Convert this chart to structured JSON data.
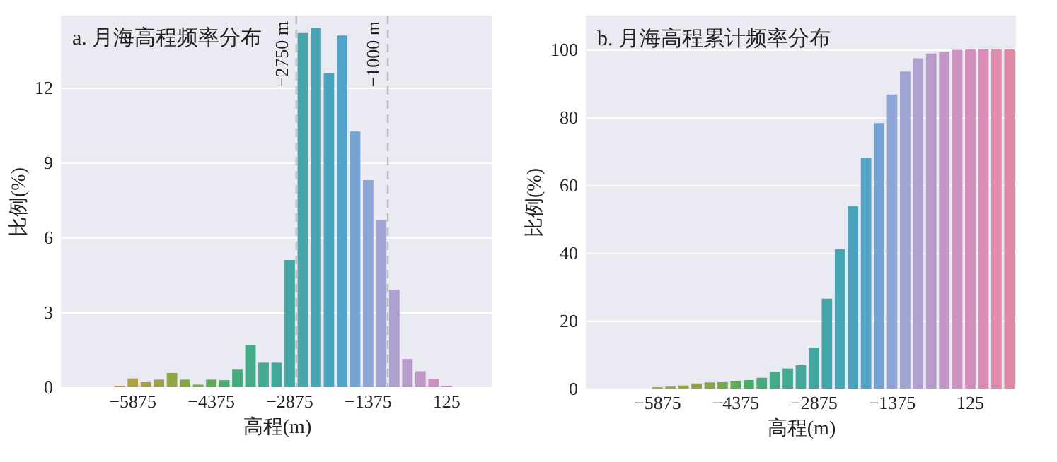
{
  "chart_data": [
    {
      "type": "bar",
      "title": "a. 月海高程频率分布",
      "xlabel": "高程(m)",
      "ylabel": "比例(%)",
      "categories": [
        null,
        null,
        null,
        null,
        null,
        "−5875",
        null,
        null,
        null,
        null,
        null,
        "−4375",
        null,
        null,
        null,
        null,
        null,
        "−2875",
        null,
        null,
        null,
        null,
        null,
        "−1375",
        null,
        null,
        null,
        null,
        null,
        "125",
        null,
        null,
        null
      ],
      "values": [
        0,
        0,
        0,
        0,
        0.05,
        0.35,
        0.2,
        0.3,
        0.57,
        0.3,
        0.1,
        0.3,
        0.28,
        0.7,
        1.7,
        0.98,
        0.98,
        5.1,
        14.2,
        14.4,
        12.6,
        14.1,
        10.25,
        8.3,
        6.7,
        3.9,
        1.13,
        0.64,
        0.34,
        0.05,
        0,
        0,
        0
      ],
      "colors": [
        "#d69a5c",
        "#cc9d50",
        "#c49e4c",
        "#bb9f4a",
        "#b3a047",
        "#aea045",
        "#a6a145",
        "#9ca245",
        "#91a446",
        "#85a647",
        "#75a84a",
        "#5dab53",
        "#4aac69",
        "#46ab7b",
        "#45aa88",
        "#44a993",
        "#43a89c",
        "#43a7a4",
        "#45a6ac",
        "#47a5b4",
        "#4ba4bd",
        "#55a2c9",
        "#74a4d4",
        "#8ea6d6",
        "#a0a4d4",
        "#aea0cf",
        "#b99ccb",
        "#c297c6",
        "#cb92c2",
        "#d38ebe",
        "#da8cb6",
        "#df8bae",
        "#e28aa5"
      ],
      "ylim": [
        0,
        14.9
      ],
      "yticks": [
        0,
        3,
        6,
        9,
        12
      ],
      "grid": "y",
      "annotations": [
        "−2750 m",
        "−1000 m"
      ]
    },
    {
      "type": "bar",
      "title": "b. 月海高程累计频率分布",
      "xlabel": "高程(m)",
      "ylabel": "比例(%)",
      "categories": [
        null,
        null,
        null,
        null,
        null,
        "−5875",
        null,
        null,
        null,
        null,
        null,
        "−4375",
        null,
        null,
        null,
        null,
        null,
        "−2875",
        null,
        null,
        null,
        null,
        null,
        "−1375",
        null,
        null,
        null,
        null,
        null,
        "125",
        null,
        null,
        null
      ],
      "values": [
        0,
        0,
        0,
        0,
        0,
        0.4,
        0.6,
        0.9,
        1.5,
        1.8,
        1.9,
        2.2,
        2.5,
        3.2,
        4.9,
        5.9,
        6.9,
        12.0,
        26.5,
        41.1,
        53.8,
        67.9,
        78.3,
        86.7,
        93.5,
        97.4,
        98.8,
        99.4,
        99.9,
        100,
        100,
        100,
        100
      ],
      "colors": [
        "#d69a5c",
        "#cc9d50",
        "#c49e4c",
        "#bb9f4a",
        "#b3a047",
        "#aea045",
        "#a6a145",
        "#9ca245",
        "#91a446",
        "#85a647",
        "#75a84a",
        "#5dab53",
        "#4aac69",
        "#46ab7b",
        "#45aa88",
        "#44a993",
        "#43a89c",
        "#43a7a4",
        "#45a6ac",
        "#47a5b4",
        "#4ba4bd",
        "#55a2c9",
        "#74a4d4",
        "#8ea6d6",
        "#a0a4d4",
        "#aea0cf",
        "#b99ccb",
        "#c297c6",
        "#cb92c2",
        "#d38ebe",
        "#da8cb6",
        "#df8bae",
        "#e28aa5"
      ],
      "ylim": [
        0,
        110
      ],
      "yticks": [
        0,
        20,
        40,
        60,
        80,
        100
      ],
      "grid": "y"
    }
  ]
}
